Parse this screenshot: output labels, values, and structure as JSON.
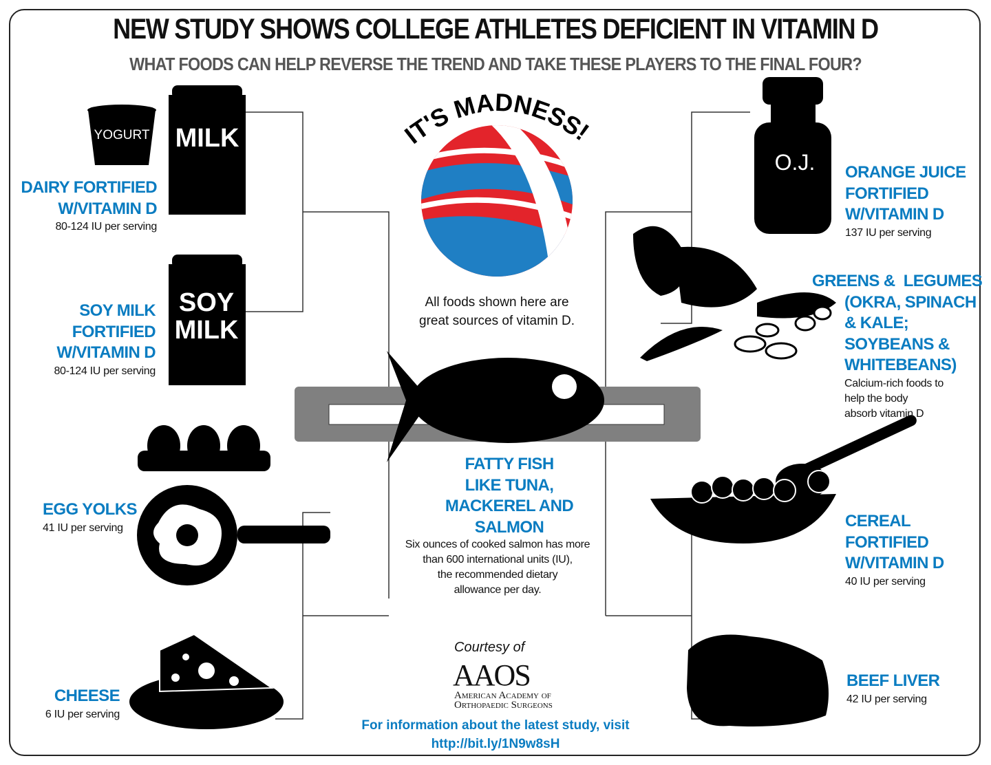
{
  "header": {
    "title": "NEW STUDY SHOWS COLLEGE ATHLETES DEFICIENT IN VITAMIN D",
    "subtitle": "WHAT FOODS CAN HELP REVERSE THE TREND AND TAKE THESE PLAYERS TO THE FINAL FOUR?"
  },
  "colors": {
    "accent_blue": "#0a7cc1",
    "ball_red": "#e3242b",
    "ball_blue": "#1f7fc4",
    "bar_gray": "#808080"
  },
  "center": {
    "madness": "IT'S MADNESS!",
    "all_foods": [
      "All foods shown here are",
      "great sources of vitamin D."
    ],
    "fish_title": [
      "FATTY FISH",
      "LIKE TUNA,",
      "MACKEREL AND",
      "SALMON"
    ],
    "fish_desc": [
      "Six ounces of cooked salmon has more",
      "than 600 international units (IU),",
      "the recommended dietary",
      "allowance per day."
    ]
  },
  "left": {
    "dairy": {
      "title": [
        "DAIRY FORTIFIED",
        "W/VITAMIN D"
      ],
      "amount": "80-124 IU per serving",
      "yogurt_label": "YOGURT",
      "milk_label": "MILK"
    },
    "soy": {
      "title": [
        "SOY MILK",
        "FORTIFIED",
        "W/VITAMIN D"
      ],
      "amount": "80-124 IU per serving",
      "carton_label": [
        "SOY",
        "MILK"
      ]
    },
    "egg": {
      "title": "EGG YOLKS",
      "amount": "41 IU per serving"
    },
    "cheese": {
      "title": "CHEESE",
      "amount": "6 IU per serving"
    }
  },
  "right": {
    "oj": {
      "title": [
        "ORANGE JUICE",
        "FORTIFIED",
        "W/VITAMIN D"
      ],
      "amount": "137 IU per serving",
      "bottle_label": "O.J."
    },
    "greens": {
      "title": [
        "GREENS &  LEGUMES",
        "(OKRA, SPINACH",
        "& KALE;",
        "SOYBEANS &",
        "WHITEBEANS)"
      ],
      "desc": [
        "Calcium-rich foods to",
        "help the body",
        "absorb vitamin D"
      ]
    },
    "cereal": {
      "title": [
        "CEREAL",
        "FORTIFIED",
        "W/VITAMIN D"
      ],
      "amount": "40 IU per serving"
    },
    "liver": {
      "title": "BEEF LIVER",
      "amount": "42 IU per serving"
    }
  },
  "footer": {
    "courtesy": "Courtesy of",
    "logo": "AAOS",
    "org": [
      "American Academy of",
      "Orthopaedic Surgeons"
    ],
    "info": "For information about the latest study, visit",
    "link": "http://bit.ly/1N9w8sH"
  }
}
